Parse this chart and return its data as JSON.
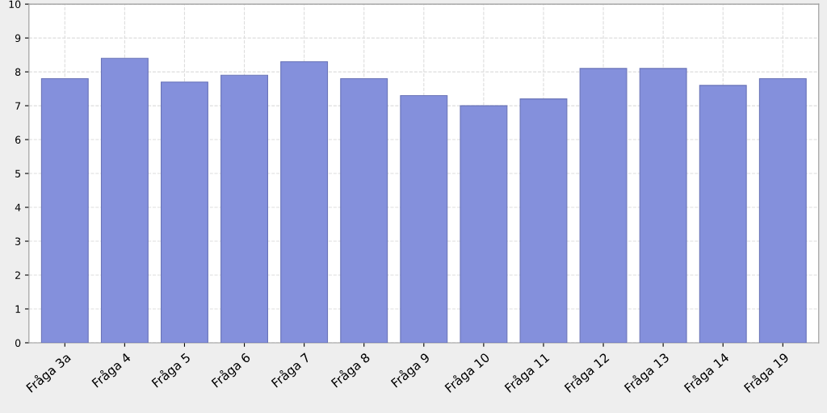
{
  "chart_data": {
    "type": "bar",
    "categories": [
      "Fråga 3a",
      "Fråga 4",
      "Fråga 5",
      "Fråga 6",
      "Fråga 7",
      "Fråga 8",
      "Fråga 9",
      "Fråga 10",
      "Fråga 11",
      "Fråga 12",
      "Fråga 13",
      "Fråga 14",
      "Fråga 19"
    ],
    "series": [
      {
        "color": "#8490dc",
        "values": [
          7.8,
          8.4,
          7.7,
          7.9,
          8.3,
          7.8,
          7.3,
          7.0,
          7.2,
          8.1,
          8.1,
          7.6,
          7.8
        ]
      }
    ],
    "ylim": [
      0,
      10
    ],
    "yticks": [
      0,
      1,
      2,
      3,
      4,
      5,
      6,
      7,
      8,
      9,
      10
    ],
    "grid": true
  }
}
